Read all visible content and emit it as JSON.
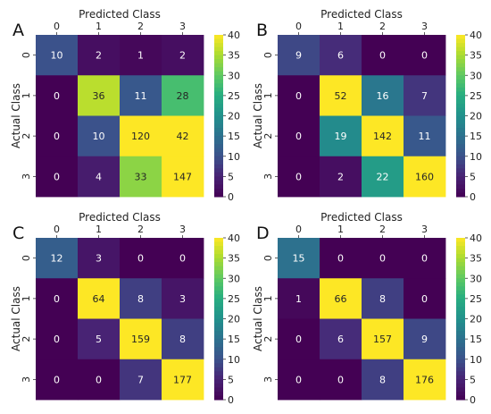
{
  "chart_data": [
    {
      "type": "heatmap",
      "panel_label": "A",
      "xlabel": "Predicted Class",
      "ylabel": "Actual Class",
      "x_categories": [
        "0",
        "1",
        "2",
        "3"
      ],
      "y_categories": [
        "0",
        "1",
        "2",
        "3"
      ],
      "matrix": [
        [
          10,
          2,
          1,
          2
        ],
        [
          0,
          36,
          11,
          28
        ],
        [
          0,
          10,
          120,
          42
        ],
        [
          0,
          4,
          33,
          147
        ]
      ],
      "colormap": "viridis",
      "clim": [
        0,
        40
      ],
      "colorbar_ticks": [
        "0",
        "5",
        "10",
        "15",
        "20",
        "25",
        "30",
        "35",
        "40"
      ]
    },
    {
      "type": "heatmap",
      "panel_label": "B",
      "xlabel": "Predicted Class",
      "ylabel": "Actual Class",
      "x_categories": [
        "0",
        "1",
        "2",
        "3"
      ],
      "y_categories": [
        "0",
        "1",
        "2",
        "3"
      ],
      "matrix": [
        [
          9,
          6,
          0,
          0
        ],
        [
          0,
          52,
          16,
          7
        ],
        [
          0,
          19,
          142,
          11
        ],
        [
          0,
          2,
          22,
          160
        ]
      ],
      "colormap": "viridis",
      "clim": [
        0,
        40
      ],
      "colorbar_ticks": [
        "0",
        "5",
        "10",
        "15",
        "20",
        "25",
        "30",
        "35",
        "40"
      ]
    },
    {
      "type": "heatmap",
      "panel_label": "C",
      "xlabel": "Predicted Class",
      "ylabel": "Actual Class",
      "x_categories": [
        "0",
        "1",
        "2",
        "3"
      ],
      "y_categories": [
        "0",
        "1",
        "2",
        "3"
      ],
      "matrix": [
        [
          12,
          3,
          0,
          0
        ],
        [
          0,
          64,
          8,
          3
        ],
        [
          0,
          5,
          159,
          8
        ],
        [
          0,
          0,
          7,
          177
        ]
      ],
      "colormap": "viridis",
      "clim": [
        0,
        40
      ],
      "colorbar_ticks": [
        "0",
        "5",
        "10",
        "15",
        "20",
        "25",
        "30",
        "35",
        "40"
      ]
    },
    {
      "type": "heatmap",
      "panel_label": "D",
      "xlabel": "Predicted Class",
      "ylabel": "Actual Class",
      "x_categories": [
        "0",
        "1",
        "2",
        "3"
      ],
      "y_categories": [
        "0",
        "1",
        "2",
        "3"
      ],
      "matrix": [
        [
          15,
          0,
          0,
          0
        ],
        [
          1,
          66,
          8,
          0
        ],
        [
          0,
          6,
          157,
          9
        ],
        [
          0,
          0,
          8,
          176
        ]
      ],
      "colormap": "viridis",
      "clim": [
        0,
        40
      ],
      "colorbar_ticks": [
        "0",
        "5",
        "10",
        "15",
        "20",
        "25",
        "30",
        "35",
        "40"
      ]
    }
  ]
}
